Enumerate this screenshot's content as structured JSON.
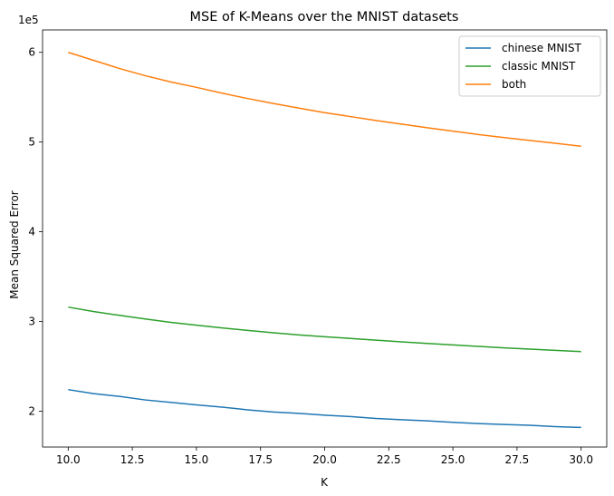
{
  "chart_data": {
    "type": "line",
    "title": "MSE of K-Means over the MNIST datasets",
    "xlabel": "K",
    "ylabel": "Mean Squared Error",
    "y_offset_label": "1e5",
    "y_scale": 100000,
    "xlim": [
      9,
      31
    ],
    "ylim": [
      160000,
      625000
    ],
    "xticks": [
      10.0,
      12.5,
      15.0,
      17.5,
      20.0,
      22.5,
      25.0,
      27.5,
      30.0
    ],
    "xtick_labels": [
      "10.0",
      "12.5",
      "15.0",
      "17.5",
      "20.0",
      "22.5",
      "25.0",
      "27.5",
      "30.0"
    ],
    "yticks": [
      200000,
      300000,
      400000,
      500000,
      600000
    ],
    "ytick_labels": [
      "2",
      "3",
      "4",
      "5",
      "6"
    ],
    "grid": false,
    "legend_position": "top-right",
    "x": [
      10,
      11,
      12,
      13,
      14,
      15,
      16,
      17,
      18,
      19,
      20,
      21,
      22,
      23,
      24,
      25,
      26,
      27,
      28,
      29,
      30
    ],
    "series": [
      {
        "name": "chinese MNIST",
        "color": "#1f77b4",
        "values": [
          224000,
          219500,
          216500,
          212500,
          209800,
          207000,
          204500,
          201500,
          199000,
          197500,
          195500,
          194000,
          191800,
          190500,
          189200,
          187500,
          186200,
          185200,
          184200,
          182800,
          181800
        ]
      },
      {
        "name": "classic MNIST",
        "color": "#2ca02c",
        "values": [
          316000,
          311000,
          306800,
          302800,
          299000,
          295800,
          292800,
          290000,
          287400,
          285000,
          283000,
          281100,
          279200,
          277300,
          275500,
          273800,
          272200,
          270600,
          269200,
          267800,
          266400
        ]
      },
      {
        "name": "both",
        "color": "#ff7f0e",
        "values": [
          600000,
          591000,
          582000,
          574000,
          567000,
          561000,
          554500,
          548500,
          543000,
          537800,
          532800,
          528400,
          524000,
          520000,
          516000,
          512200,
          508400,
          505000,
          501800,
          498600,
          495400
        ]
      }
    ]
  }
}
